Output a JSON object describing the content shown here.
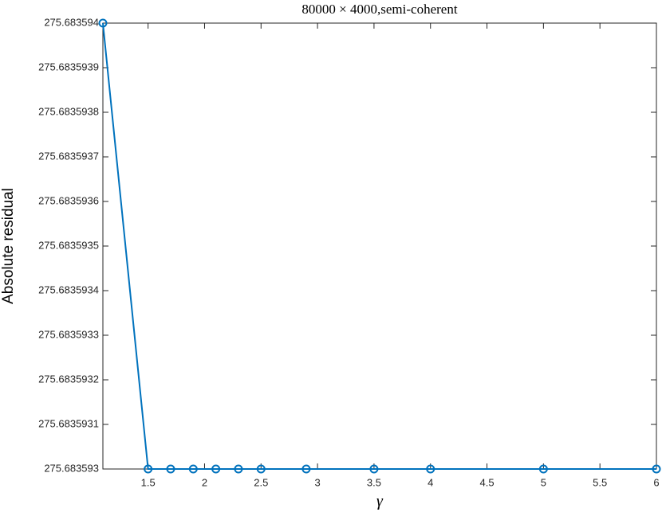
{
  "chart_data": {
    "type": "line",
    "title": "80000 × 4000,semi-coherent",
    "x_label": "γ",
    "y_label": "Absolute residual",
    "x": [
      1.1,
      1.5,
      1.7,
      1.9,
      2.1,
      2.3,
      2.5,
      2.9,
      3.5,
      4,
      5,
      6
    ],
    "series": [
      {
        "color": "#0072bd",
        "values": [
          275.683594,
          275.683593,
          275.683593,
          275.683593,
          275.683593,
          275.683593,
          275.683593,
          275.683593,
          275.683593,
          275.683593,
          275.683593,
          275.683593
        ]
      }
    ],
    "xlim": [
      1.1,
      6
    ],
    "xticks": [
      1.5,
      2,
      2.5,
      3,
      3.5,
      4,
      4.5,
      5,
      5.5,
      6
    ],
    "ylim": [
      275.683593,
      275.683594
    ],
    "yticks": [
      275.683593,
      275.6835931,
      275.6835932,
      275.6835933,
      275.6835934,
      275.6835935,
      275.6835936,
      275.6835937,
      275.6835938,
      275.6835939,
      275.683594
    ],
    "grid": false
  }
}
